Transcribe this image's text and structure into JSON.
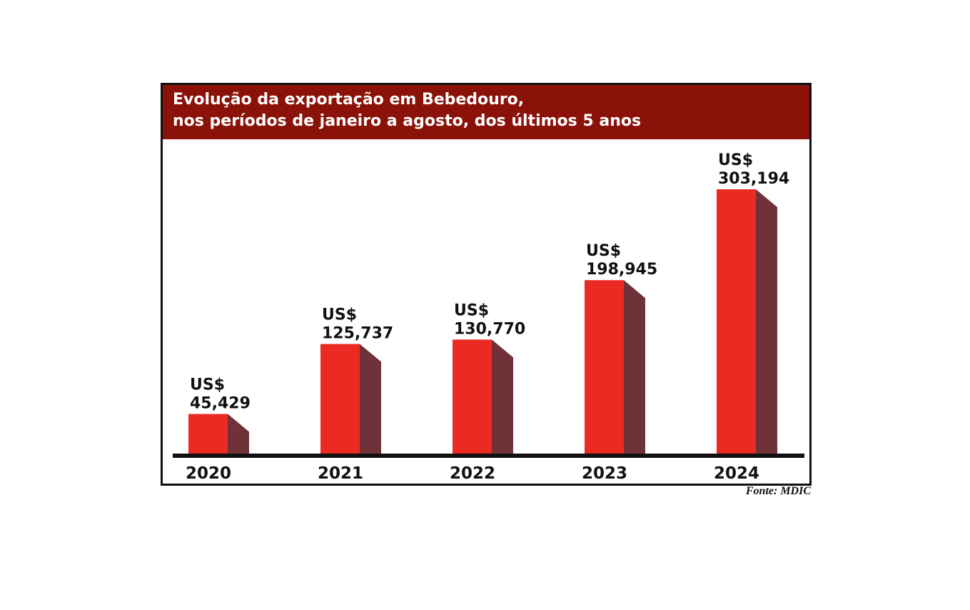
{
  "chart_data": {
    "type": "bar",
    "title": [
      "Evolução da exportação em Bebedouro,",
      "nos períodos de janeiro a agosto, dos últimos 5 anos"
    ],
    "categories": [
      "2020",
      "2021",
      "2022",
      "2023",
      "2024"
    ],
    "values": [
      45429,
      125737,
      130770,
      198945,
      303194
    ],
    "value_labels": [
      "45,429",
      "125,737",
      "130,770",
      "198,945",
      "303,194"
    ],
    "currency_label": "US$",
    "source": "Fonte: MDIC",
    "colors": {
      "bar_front": "#ec2a24",
      "bar_side": "#6e3238",
      "header_bg": "#8b1208",
      "axis": "#111111"
    }
  }
}
